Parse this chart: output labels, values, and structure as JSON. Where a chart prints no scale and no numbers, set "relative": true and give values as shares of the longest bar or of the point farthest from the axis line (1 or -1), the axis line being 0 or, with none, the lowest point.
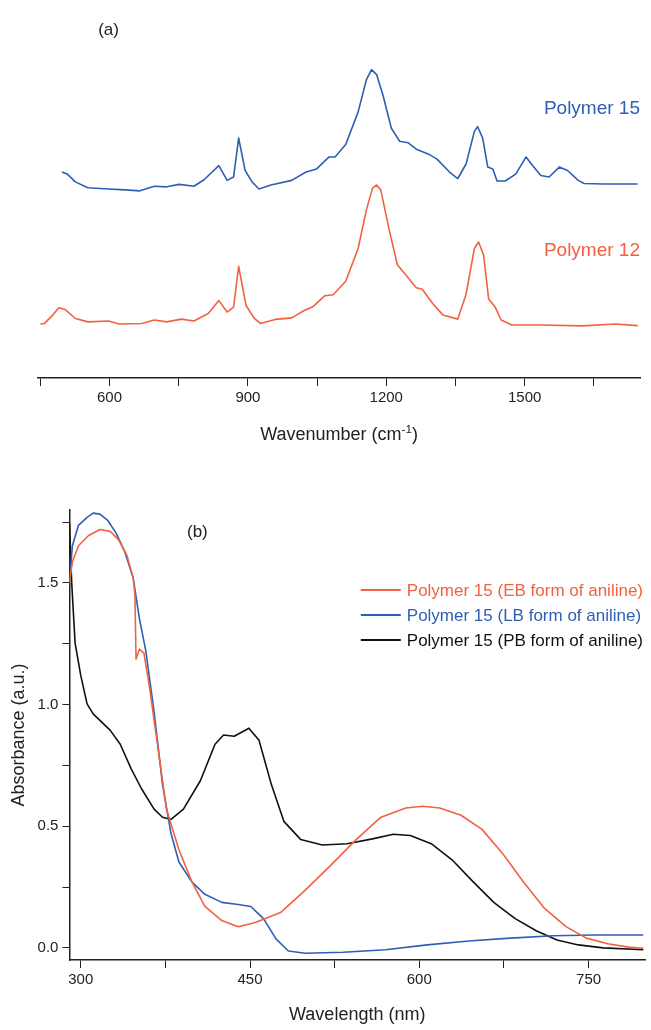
{
  "chart_data": [
    {
      "type": "line",
      "relative": true,
      "xlabel": "Wavenumber (cm$^{-1}$)",
      "annotations": [
        "(a)"
      ],
      "xlim": [
        445,
        1750
      ],
      "xticks": [
        {
          "value": 450,
          "label": null
        },
        600,
        {
          "value": 750,
          "label": null
        },
        900,
        {
          "value": 1050,
          "label": null
        },
        1200,
        {
          "value": 1350,
          "label": null
        },
        1500,
        {
          "value": 1650,
          "label": null
        }
      ],
      "tick_labels": "x",
      "grid": false,
      "legend": false,
      "marker": "none",
      "line_style": "solid",
      "series": [
        {
          "name": "Polymer 15",
          "color": "#2e5fb5",
          "x": [
            497,
            508,
            526,
            553,
            598,
            634,
            666,
            697,
            724,
            751,
            783,
            805,
            837,
            855,
            869,
            880,
            894,
            909,
            924,
            950,
            995,
            1026,
            1049,
            1076,
            1089,
            1112,
            1139,
            1157,
            1168,
            1179,
            1193,
            1211,
            1229,
            1247,
            1265,
            1292,
            1310,
            1337,
            1355,
            1373,
            1391,
            1398,
            1409,
            1420,
            1431,
            1440,
            1458,
            1481,
            1503,
            1517,
            1535,
            1553,
            1575,
            1593,
            1616,
            1629,
            1670,
            1715,
            1745
          ],
          "values": [
            0.668,
            0.662,
            0.636,
            0.617,
            0.613,
            0.61,
            0.607,
            0.622,
            0.62,
            0.628,
            0.622,
            0.643,
            0.689,
            0.641,
            0.652,
            0.778,
            0.673,
            0.636,
            0.613,
            0.626,
            0.641,
            0.668,
            0.678,
            0.717,
            0.717,
            0.757,
            0.863,
            0.968,
            1.0,
            0.984,
            0.916,
            0.81,
            0.768,
            0.763,
            0.742,
            0.726,
            0.71,
            0.668,
            0.647,
            0.694,
            0.8,
            0.815,
            0.778,
            0.684,
            0.678,
            0.639,
            0.639,
            0.662,
            0.717,
            0.689,
            0.657,
            0.652,
            0.684,
            0.673,
            0.641,
            0.631,
            0.629,
            0.629,
            0.629
          ]
        },
        {
          "name": "Polymer 12",
          "color": "#f26140",
          "x": [
            450,
            459,
            477,
            490,
            504,
            526,
            553,
            598,
            621,
            670,
            697,
            724,
            756,
            783,
            814,
            837,
            855,
            869,
            880,
            896,
            914,
            927,
            959,
            995,
            1022,
            1040,
            1067,
            1085,
            1112,
            1139,
            1157,
            1170,
            1179,
            1188,
            1206,
            1224,
            1242,
            1265,
            1278,
            1301,
            1323,
            1355,
            1373,
            1391,
            1400,
            1411,
            1422,
            1436,
            1449,
            1472,
            1535,
            1625,
            1697,
            1745
          ],
          "values": [
            0.175,
            0.177,
            0.204,
            0.228,
            0.222,
            0.193,
            0.182,
            0.185,
            0.175,
            0.177,
            0.188,
            0.182,
            0.191,
            0.185,
            0.209,
            0.251,
            0.214,
            0.23,
            0.362,
            0.235,
            0.193,
            0.177,
            0.19,
            0.195,
            0.219,
            0.23,
            0.267,
            0.27,
            0.314,
            0.42,
            0.546,
            0.615,
            0.626,
            0.61,
            0.483,
            0.367,
            0.335,
            0.293,
            0.288,
            0.241,
            0.204,
            0.191,
            0.272,
            0.42,
            0.441,
            0.399,
            0.256,
            0.23,
            0.188,
            0.172,
            0.172,
            0.169,
            0.175,
            0.17
          ]
        }
      ]
    },
    {
      "type": "line",
      "xlabel": "Wavelength (nm)",
      "ylabel": "Absorbance (a.u.)",
      "annotations": [
        "(b)"
      ],
      "xlim": [
        290,
        800
      ],
      "xticks": [
        300,
        {
          "value": 375,
          "label": null
        },
        450,
        {
          "value": 525,
          "label": null
        },
        600,
        {
          "value": 675,
          "label": null
        },
        750
      ],
      "ylim": [
        -0.05,
        1.8
      ],
      "yticks": [
        {
          "value": 0,
          "label": "0.0"
        },
        {
          "value": 0.25,
          "label": null
        },
        {
          "value": 0.5,
          "label": "0.5"
        },
        {
          "value": 0.75,
          "label": null
        },
        {
          "value": 1,
          "label": "1.0"
        },
        {
          "value": 1.25,
          "label": null
        },
        {
          "value": 1.5,
          "label": "1.5"
        },
        {
          "value": 1.75,
          "label": null
        }
      ],
      "grid": false,
      "legend": "top right",
      "marker": "none",
      "line_style": "solid",
      "series": [
        {
          "name": "Polymer 15 (EB form of aniline)",
          "color": "#f26140",
          "x": [
            290,
            292.6,
            298,
            307,
            317,
            326,
            333.5,
            341,
            346.5,
            348,
            349,
            352,
            356,
            361,
            369,
            376,
            387,
            398.6,
            410,
            425,
            439.5,
            454,
            477,
            499,
            521,
            544,
            566,
            588,
            603,
            618,
            637,
            655.6,
            674,
            692.5,
            711,
            730,
            748,
            767,
            785.5,
            798.5
          ],
          "values": [
            1.5,
            1.587,
            1.653,
            1.695,
            1.72,
            1.712,
            1.678,
            1.612,
            1.52,
            1.453,
            1.187,
            1.228,
            1.212,
            1.07,
            0.803,
            0.57,
            0.403,
            0.27,
            0.17,
            0.112,
            0.087,
            0.103,
            0.145,
            0.237,
            0.337,
            0.445,
            0.537,
            0.575,
            0.582,
            0.575,
            0.545,
            0.487,
            0.387,
            0.27,
            0.162,
            0.087,
            0.04,
            0.017,
            0.003,
            -0.002
          ]
        },
        {
          "name": "Polymer 15 (LB form of aniline)",
          "color": "#2e5fb5",
          "x": [
            290,
            292.6,
            298,
            305.6,
            311,
            317,
            324,
            331.6,
            339,
            346.5,
            352,
            357.7,
            365,
            372.5,
            380,
            387,
            398.6,
            410,
            425,
            439.5,
            450.7,
            462,
            473,
            484,
            499,
            532.5,
            570,
            607,
            644,
            681,
            718.5,
            755.6,
            798.5
          ],
          "values": [
            1.5,
            1.653,
            1.737,
            1.77,
            1.787,
            1.783,
            1.757,
            1.703,
            1.628,
            1.52,
            1.353,
            1.22,
            0.97,
            0.67,
            0.47,
            0.353,
            0.27,
            0.22,
            0.187,
            0.178,
            0.17,
            0.12,
            0.037,
            -0.013,
            -0.022,
            -0.018,
            -0.008,
            0.012,
            0.028,
            0.04,
            0.05,
            0.053,
            0.053
          ]
        },
        {
          "name": "Polymer 15 (PB form of aniline)",
          "color": "#111111",
          "x": [
            290,
            292,
            295,
            300,
            305.6,
            311,
            318.6,
            326,
            335,
            344.6,
            354,
            365,
            372.5,
            380,
            391,
            406,
            419,
            426.5,
            436,
            449,
            458,
            469,
            480,
            495,
            514,
            536,
            558.5,
            577,
            592,
            610.6,
            629,
            648,
            666,
            685,
            703.6,
            722,
            741,
            763,
            798.5
          ],
          "values": [
            1.745,
            1.5,
            1.253,
            1.12,
            1.003,
            0.962,
            0.928,
            0.895,
            0.837,
            0.737,
            0.653,
            0.57,
            0.537,
            0.528,
            0.57,
            0.687,
            0.837,
            0.875,
            0.87,
            0.903,
            0.853,
            0.67,
            0.52,
            0.445,
            0.423,
            0.428,
            0.448,
            0.467,
            0.462,
            0.428,
            0.362,
            0.27,
            0.187,
            0.12,
            0.07,
            0.032,
            0.012,
            0,
            -0.008
          ]
        }
      ]
    }
  ]
}
